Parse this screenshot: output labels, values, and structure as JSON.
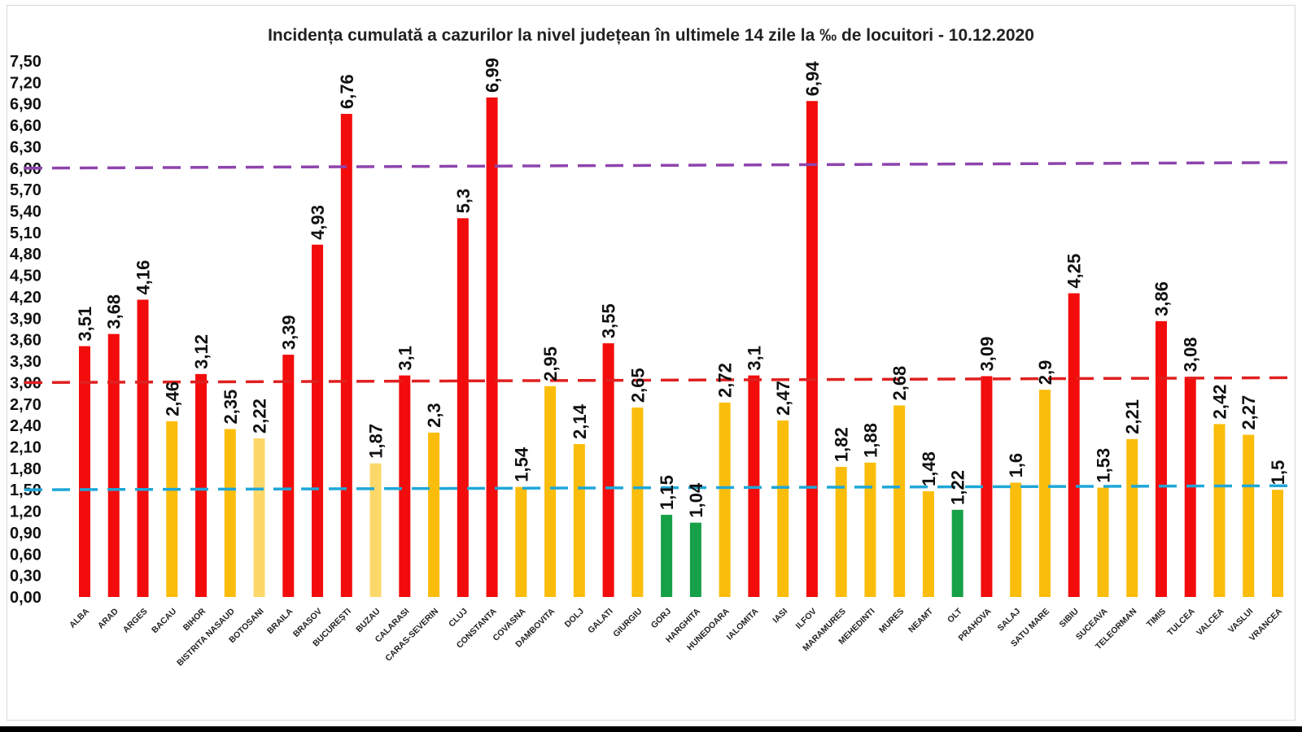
{
  "chart_data": {
    "type": "bar",
    "title": "Incidența cumulată a cazurilor la nivel județean în ultimele 14 zile la ‰ de locuitori - 10.12.2020",
    "xlabel": "",
    "ylabel": "",
    "ylim": [
      0,
      7.5
    ],
    "y_ticks": [
      "0,00",
      "0,30",
      "0,60",
      "0,90",
      "1,20",
      "1,50",
      "1,80",
      "2,10",
      "2,40",
      "2,70",
      "3,00",
      "3,30",
      "3,60",
      "3,90",
      "4,20",
      "4,50",
      "4,80",
      "5,10",
      "5,40",
      "5,70",
      "6,00",
      "6,30",
      "6,60",
      "6,90",
      "7,20",
      "7,50"
    ],
    "categories": [
      "ALBA",
      "ARAD",
      "ARGES",
      "BACAU",
      "BIHOR",
      "BISTRITA NASAUD",
      "BOTOSANI",
      "BRAILA",
      "BRASOV",
      "BUCUREȘTI",
      "BUZAU",
      "CALARASI",
      "CARAS-SEVERIN",
      "CLUJ",
      "CONSTANTA",
      "COVASNA",
      "DAMBOVITA",
      "DOLJ",
      "GALATI",
      "GIURGIU",
      "GORJ",
      "HARGHITA",
      "HUNEDOARA",
      "IALOMITA",
      "IASI",
      "ILFOV",
      "MARAMURES",
      "MEHEDINTI",
      "MURES",
      "NEAMT",
      "OLT",
      "PRAHOVA",
      "SALAJ",
      "SATU MARE",
      "SIBIU",
      "SUCEAVA",
      "TELEORMAN",
      "TIMIS",
      "TULCEA",
      "VALCEA",
      "VASLUI",
      "VRANCEA"
    ],
    "values": [
      3.51,
      3.68,
      4.16,
      2.46,
      3.12,
      2.35,
      2.22,
      3.39,
      4.93,
      6.76,
      1.87,
      3.1,
      2.3,
      5.3,
      6.99,
      1.54,
      2.95,
      2.14,
      3.55,
      2.65,
      1.15,
      1.04,
      2.72,
      3.1,
      2.47,
      6.94,
      1.82,
      1.88,
      2.68,
      1.48,
      1.22,
      3.09,
      1.6,
      2.9,
      4.25,
      1.53,
      2.21,
      3.86,
      3.08,
      2.42,
      2.27,
      1.5
    ],
    "value_labels": [
      "3,51",
      "3,68",
      "4,16",
      "2,46",
      "3,12",
      "2,35",
      "2,22",
      "3,39",
      "4,93",
      "6,76",
      "1,87",
      "3,1",
      "2,3",
      "5,3",
      "6,99",
      "1,54",
      "2,95",
      "2,14",
      "3,55",
      "2,65",
      "1,15",
      "1,04",
      "2,72",
      "3,1",
      "2,47",
      "6,94",
      "1,82",
      "1,88",
      "2,68",
      "1,48",
      "1,22",
      "3,09",
      "1,6",
      "2,9",
      "4,25",
      "1,53",
      "2,21",
      "3,86",
      "3,08",
      "2,42",
      "2,27",
      "1,5"
    ],
    "bar_colors": [
      "#f20c0c",
      "#f20c0c",
      "#f20c0c",
      "#fbbd0b",
      "#f20c0c",
      "#fbbd0b",
      "#fcd86a",
      "#f20c0c",
      "#f20c0c",
      "#f20c0c",
      "#fcd86a",
      "#f20c0c",
      "#fbbd0b",
      "#f20c0c",
      "#f20c0c",
      "#fbbd0b",
      "#fbbd0b",
      "#fbbd0b",
      "#f20c0c",
      "#fbbd0b",
      "#16a048",
      "#16a048",
      "#fbbd0b",
      "#f20c0c",
      "#fbbd0b",
      "#f20c0c",
      "#fbbd0b",
      "#fbbd0b",
      "#fbbd0b",
      "#fbbd0b",
      "#16a048",
      "#f20c0c",
      "#fbbd0b",
      "#fbbd0b",
      "#f20c0c",
      "#fbbd0b",
      "#fbbd0b",
      "#f20c0c",
      "#f20c0c",
      "#fbbd0b",
      "#fbbd0b",
      "#fbbd0b"
    ],
    "threshold_lines": [
      {
        "value": 6.0,
        "color": "#8e44ad",
        "style": "dashed"
      },
      {
        "value": 3.0,
        "color": "#e02020",
        "style": "dashed"
      },
      {
        "value": 1.5,
        "color": "#1fa7d8",
        "style": "dashed"
      }
    ],
    "grid": false,
    "legend": "none"
  }
}
